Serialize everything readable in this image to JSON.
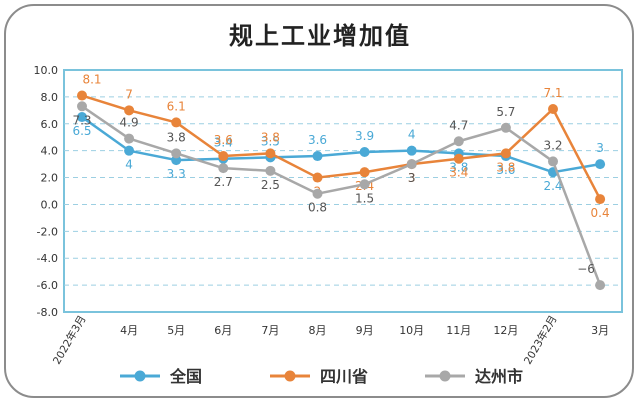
{
  "title": "规上工业增加值",
  "chart_data": {
    "type": "line",
    "categories": [
      "2022年3月",
      "4月",
      "5月",
      "6月",
      "7月",
      "8月",
      "9月",
      "10月",
      "11月",
      "12月",
      "2023年2月",
      "3月"
    ],
    "ylim": [
      -8.0,
      10.0
    ],
    "yticks": [
      "10.0",
      "8.0",
      "6.0",
      "4.0",
      "2.0",
      "0.0",
      "-2.0",
      "-4.0",
      "-6.0",
      "-8.0"
    ],
    "grid": true,
    "legend_position": "bottom",
    "series": [
      {
        "name": "全国",
        "color": "#4aa9d6",
        "values": [
          6.5,
          4,
          3.3,
          3.4,
          3.5,
          3.6,
          3.9,
          4,
          3.8,
          3.6,
          2.4,
          3
        ],
        "labels": [
          "6.5",
          "4",
          "3.3",
          "3.4",
          "3.5",
          "3.6",
          "3.9",
          "4",
          "3.8",
          "3.6",
          "2.4",
          "3"
        ]
      },
      {
        "name": "四川省",
        "color": "#e8843a",
        "values": [
          8.1,
          7,
          6.1,
          3.6,
          3.8,
          2,
          2.4,
          3,
          3.4,
          3.8,
          7.1,
          0.4
        ],
        "labels": [
          "8.1",
          "7",
          "6.1",
          "3.6",
          "3.8",
          "2",
          "2.4",
          "3",
          "3.4",
          "3.8",
          "7.1",
          "0.4"
        ]
      },
      {
        "name": "达州市",
        "color": "#a8a8a8",
        "values": [
          7.3,
          4.9,
          3.8,
          2.7,
          2.5,
          0.8,
          1.5,
          3,
          4.7,
          5.7,
          3.2,
          -6
        ],
        "labels": [
          "7.3",
          "4.9",
          "3.8",
          "2.7",
          "2.5",
          "0.8",
          "1.5",
          "3",
          "4.7",
          "5.7",
          "3.2",
          "−6"
        ]
      }
    ]
  }
}
